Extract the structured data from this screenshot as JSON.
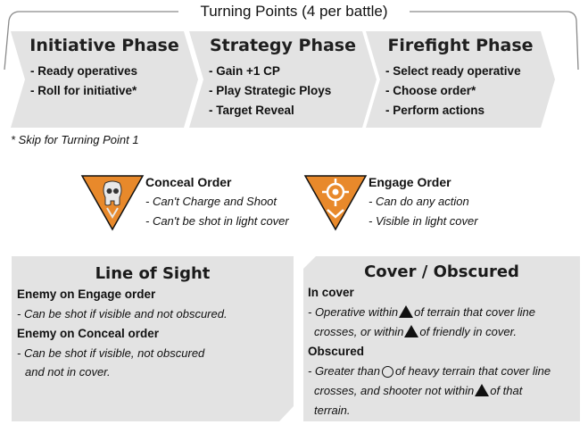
{
  "turning_points": {
    "title": "Turning Points (4 per battle)"
  },
  "phases": [
    {
      "title": "Initiative Phase",
      "items": [
        "- Ready operatives",
        "- Roll for initiative*"
      ]
    },
    {
      "title": "Strategy Phase",
      "items": [
        "- Gain +1 CP",
        "- Play Strategic Ploys",
        "- Target Reveal"
      ]
    },
    {
      "title": "Firefight Phase",
      "items": [
        "- Select ready operative",
        "- Choose order*",
        "- Perform actions"
      ]
    }
  ],
  "skip_note": "* Skip for Turning Point 1",
  "orders": {
    "conceal": {
      "title": "Conceal Order",
      "lines": [
        "- Can't Charge and Shoot",
        "- Can't be shot in light cover"
      ],
      "icon": "skull-icon"
    },
    "engage": {
      "title": "Engage Order",
      "lines": [
        "- Can do any action",
        "- Visible in light cover"
      ],
      "icon": "crosshair-icon"
    }
  },
  "line_of_sight": {
    "title": "Line of Sight",
    "engage_head": "Enemy on Engage order",
    "engage_text": "- Can be shot if visible and not obscured.",
    "conceal_head": "Enemy on Conceal order",
    "conceal_text_1": "- Can be shot if visible, not obscured",
    "conceal_text_2": "and not in cover."
  },
  "cover": {
    "title": "Cover / Obscured",
    "in_cover_head": "In cover",
    "in_cover_1a": "- Operative within",
    "in_cover_1b": "of terrain that cover line",
    "in_cover_2a": "crosses, or within",
    "in_cover_2b": "of friendly in cover.",
    "obscured_head": "Obscured",
    "obscured_1a": "- Greater than",
    "obscured_1b": "of heavy terrain that cover line",
    "obscured_2a": "crosses, and shooter not within",
    "obscured_2b": "of that",
    "obscured_3": "terrain."
  },
  "colors": {
    "panel_gray": "#e3e3e3",
    "order_orange": "#e8892b",
    "line_gray": "#8a8a8a"
  }
}
